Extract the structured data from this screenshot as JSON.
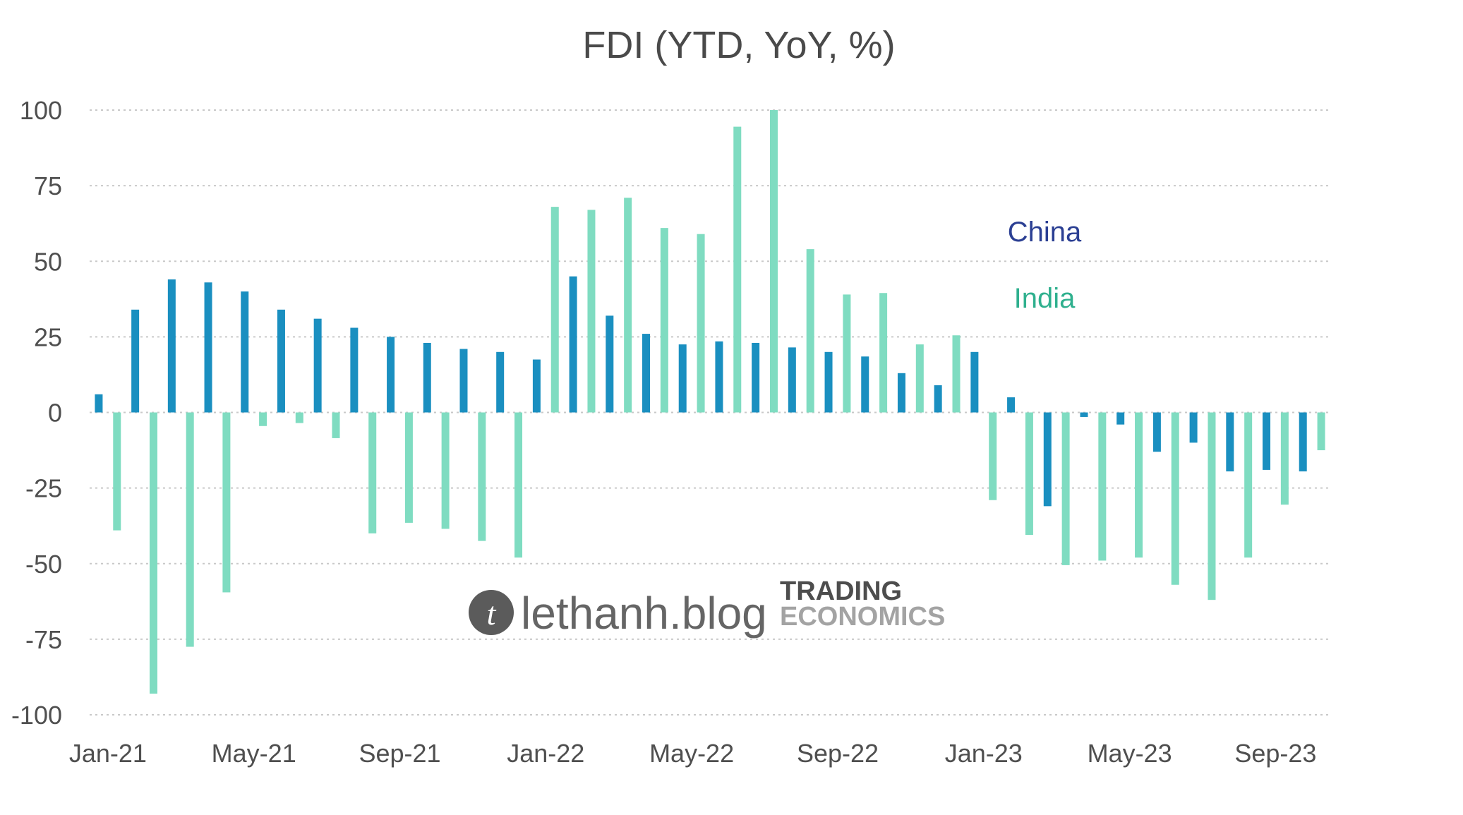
{
  "chart_data": {
    "type": "bar",
    "title": "FDI (YTD, YoY, %)",
    "xlabel": "",
    "ylabel": "",
    "ylim": [
      -100,
      100
    ],
    "yticks": [
      100,
      75,
      50,
      25,
      0,
      -25,
      -50,
      -75,
      -100
    ],
    "ytick_labels": [
      "100",
      "75",
      "50",
      "25",
      "0",
      "-25",
      "-50",
      "-75",
      "-100"
    ],
    "xtick_labels": [
      "Jan-21",
      "May-21",
      "Sep-21",
      "Jan-22",
      "May-22",
      "Sep-22",
      "Jan-23",
      "May-23",
      "Sep-23"
    ],
    "xtick_every": 4,
    "grid": true,
    "legend_placement": "right-center",
    "categories": [
      "Jan-21",
      "Feb-21",
      "Mar-21",
      "Apr-21",
      "May-21",
      "Jun-21",
      "Jul-21",
      "Aug-21",
      "Sep-21",
      "Oct-21",
      "Nov-21",
      "Dec-21",
      "Jan-22",
      "Feb-22",
      "Mar-22",
      "Apr-22",
      "May-22",
      "Jun-22",
      "Jul-22",
      "Aug-22",
      "Sep-22",
      "Oct-22",
      "Nov-22",
      "Dec-22",
      "Jan-23",
      "Feb-23",
      "Mar-23",
      "Apr-23",
      "May-23",
      "Jun-23",
      "Jul-23",
      "Aug-23",
      "Sep-23",
      "Oct-23"
    ],
    "series": [
      {
        "name": "China",
        "color": "#1a8fc0",
        "label_color": "#2b3f93",
        "values": [
          6,
          34,
          44,
          43,
          40,
          34,
          31,
          28,
          25,
          23,
          21,
          20,
          17.5,
          45,
          32,
          26,
          22.5,
          23.5,
          23,
          21.5,
          20,
          18.5,
          13,
          9,
          20,
          5,
          -31,
          -1.5,
          -4,
          -13,
          -10,
          -19.5,
          -19,
          -19.5
        ]
      },
      {
        "name": "India",
        "color": "#7fdcc1",
        "label_color": "#2fb08e",
        "values": [
          -39,
          -93,
          -77.5,
          -59.5,
          -4.5,
          -3.5,
          -8.5,
          -40,
          -36.5,
          -38.5,
          -42.5,
          -48,
          68,
          67,
          71,
          61,
          59,
          94.5,
          100,
          54,
          39,
          39.5,
          22.5,
          25.5,
          -29,
          -40.5,
          -50.5,
          -49,
          -48,
          -57,
          -62,
          -48,
          -30.5,
          -12.5
        ]
      }
    ]
  },
  "watermark": {
    "logo_letter": "t",
    "text": "lethanh.blog",
    "brand_line1": "TRADING",
    "brand_line2": "ECONOMICS"
  }
}
